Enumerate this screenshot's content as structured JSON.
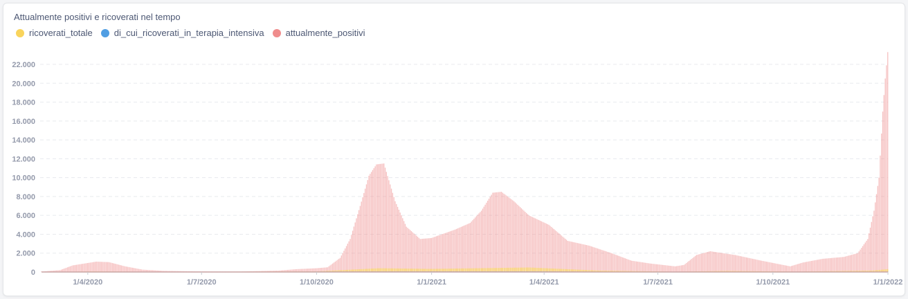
{
  "chart_data": {
    "type": "bar",
    "title": "Attualmente positivi e ricoverati nel tempo",
    "xlabel": "",
    "ylabel": "",
    "ylim": [
      0,
      23500
    ],
    "y_ticks": [
      "0",
      "2.000",
      "4.000",
      "6.000",
      "8.000",
      "10.000",
      "12.000",
      "14.000",
      "16.000",
      "18.000",
      "20.000",
      "22.000"
    ],
    "y_tick_values": [
      0,
      2000,
      4000,
      6000,
      8000,
      10000,
      12000,
      14000,
      16000,
      18000,
      20000,
      22000
    ],
    "x_range": [
      "2020-02-24",
      "2022-01-01"
    ],
    "x_ticks": [
      {
        "label": "1/4/2020",
        "date": "2020-04-01"
      },
      {
        "label": "1/7/2020",
        "date": "2020-07-01"
      },
      {
        "label": "1/10/2020",
        "date": "2020-10-01"
      },
      {
        "label": "1/1/2021",
        "date": "2021-01-01"
      },
      {
        "label": "1/4/2021",
        "date": "2021-04-01"
      },
      {
        "label": "1/7/2021",
        "date": "2021-07-01"
      },
      {
        "label": "1/10/2021",
        "date": "2021-10-01"
      },
      {
        "label": "1/1/2022",
        "date": "2022-01-01"
      }
    ],
    "grid": true,
    "legend_position": "top-left",
    "series": [
      {
        "name": "ricoverati_totale",
        "color": "#f9d45c",
        "points": [
          [
            "2020-02-24",
            0
          ],
          [
            "2020-04-05",
            60
          ],
          [
            "2020-06-01",
            20
          ],
          [
            "2020-10-01",
            60
          ],
          [
            "2020-11-20",
            400
          ],
          [
            "2021-01-01",
            330
          ],
          [
            "2021-03-20",
            480
          ],
          [
            "2021-05-15",
            150
          ],
          [
            "2021-07-15",
            30
          ],
          [
            "2021-08-25",
            110
          ],
          [
            "2021-10-20",
            40
          ],
          [
            "2021-12-20",
            150
          ],
          [
            "2022-01-01",
            300
          ]
        ]
      },
      {
        "name": "di_cui_ricoverati_in_terapia_intensiva",
        "color": "#509ee3",
        "points": [
          [
            "2020-02-24",
            0
          ],
          [
            "2020-04-05",
            20
          ],
          [
            "2020-06-01",
            5
          ],
          [
            "2020-11-20",
            60
          ],
          [
            "2021-03-25",
            70
          ],
          [
            "2021-07-15",
            5
          ],
          [
            "2022-01-01",
            40
          ]
        ]
      },
      {
        "name": "attualmente_positivi",
        "color": "#ef8c8c",
        "points": [
          [
            "2020-02-24",
            50
          ],
          [
            "2020-03-10",
            200
          ],
          [
            "2020-03-20",
            700
          ],
          [
            "2020-04-08",
            1100
          ],
          [
            "2020-04-18",
            1050
          ],
          [
            "2020-05-01",
            600
          ],
          [
            "2020-05-15",
            250
          ],
          [
            "2020-06-01",
            120
          ],
          [
            "2020-07-01",
            60
          ],
          [
            "2020-08-01",
            50
          ],
          [
            "2020-09-01",
            150
          ],
          [
            "2020-09-15",
            300
          ],
          [
            "2020-10-01",
            400
          ],
          [
            "2020-10-10",
            500
          ],
          [
            "2020-10-20",
            1500
          ],
          [
            "2020-10-28",
            3500
          ],
          [
            "2020-11-05",
            7000
          ],
          [
            "2020-11-12",
            10200
          ],
          [
            "2020-11-18",
            11400
          ],
          [
            "2020-11-24",
            11500
          ],
          [
            "2020-12-03",
            7500
          ],
          [
            "2020-12-12",
            4800
          ],
          [
            "2020-12-23",
            3500
          ],
          [
            "2021-01-01",
            3600
          ],
          [
            "2021-01-20",
            4500
          ],
          [
            "2021-02-01",
            5200
          ],
          [
            "2021-02-10",
            6500
          ],
          [
            "2021-02-19",
            8400
          ],
          [
            "2021-02-26",
            8500
          ],
          [
            "2021-03-08",
            7500
          ],
          [
            "2021-03-20",
            6000
          ],
          [
            "2021-04-05",
            5000
          ],
          [
            "2021-04-20",
            3300
          ],
          [
            "2021-05-07",
            2800
          ],
          [
            "2021-05-25",
            2000
          ],
          [
            "2021-06-10",
            1200
          ],
          [
            "2021-06-25",
            900
          ],
          [
            "2021-07-15",
            600
          ],
          [
            "2021-07-22",
            750
          ],
          [
            "2021-08-01",
            1800
          ],
          [
            "2021-08-12",
            2200
          ],
          [
            "2021-09-01",
            1800
          ],
          [
            "2021-09-22",
            1200
          ],
          [
            "2021-10-15",
            600
          ],
          [
            "2021-10-25",
            1000
          ],
          [
            "2021-11-10",
            1400
          ],
          [
            "2021-11-27",
            1600
          ],
          [
            "2021-12-08",
            2000
          ],
          [
            "2021-12-16",
            3500
          ],
          [
            "2021-12-21",
            6500
          ],
          [
            "2021-12-25",
            10000
          ],
          [
            "2021-12-28",
            17000
          ],
          [
            "2021-12-30",
            20500
          ],
          [
            "2022-01-01",
            23300
          ]
        ]
      }
    ]
  }
}
